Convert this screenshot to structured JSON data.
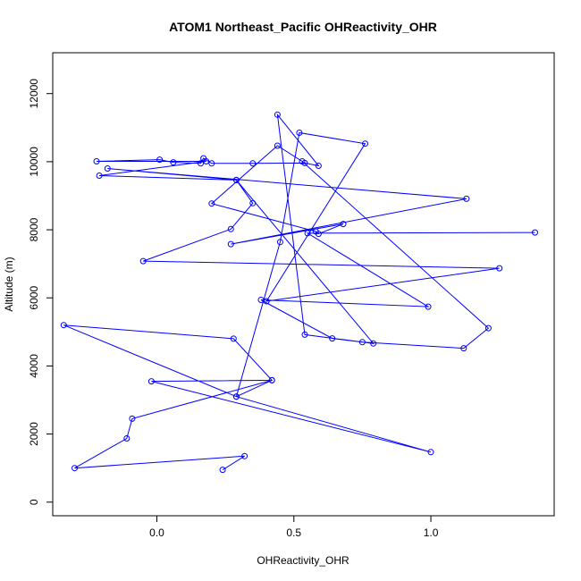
{
  "chart_data": {
    "type": "scatter",
    "title": "ATOM1 Northeast_Pacific OHReactivity_OHR",
    "xlabel": "OHReactivity_OHR",
    "ylabel": "Altitude (m)",
    "xlim": [
      -0.38,
      1.45
    ],
    "ylim": [
      -400,
      13200
    ],
    "x_ticks": [
      0.0,
      0.5,
      1.0
    ],
    "x_tick_labels": [
      "0.0",
      "0.5",
      "1.0"
    ],
    "y_ticks": [
      0,
      2000,
      4000,
      6000,
      8000,
      10000,
      12000
    ],
    "y_tick_labels": [
      "0",
      "2000",
      "4000",
      "6000",
      "8000",
      "10000",
      "12000"
    ],
    "grid": false,
    "series": [
      {
        "name": "OHReactivity_OHR",
        "color": "#0000ff",
        "x": [
          0.24,
          0.32,
          -0.3,
          -0.11,
          -0.09,
          0.42,
          0.29,
          -0.34,
          0.28,
          0.42,
          -0.02,
          1.0,
          0.29,
          0.45,
          0.52,
          0.76,
          0.4,
          1.25,
          -0.05,
          0.27,
          0.35,
          0.29,
          -0.21,
          0.18,
          -0.22,
          0.01,
          0.06,
          0.16,
          0.17,
          0.2,
          0.35,
          0.54,
          0.59,
          0.44,
          0.54,
          0.79,
          0.29,
          -0.18,
          1.13,
          0.27,
          0.68,
          0.59,
          0.58,
          0.2,
          0.44,
          0.53,
          1.21,
          1.12,
          0.75,
          0.64,
          0.38,
          0.99,
          0.55,
          1.38
        ],
        "y": [
          950,
          1350,
          1000,
          1870,
          2450,
          3580,
          3100,
          5200,
          4800,
          3580,
          3550,
          1470,
          3100,
          7640,
          10850,
          10530,
          5900,
          6870,
          7080,
          8020,
          8780,
          9460,
          9590,
          10010,
          10010,
          10060,
          9980,
          9950,
          10100,
          9950,
          9950,
          9960,
          9880,
          11380,
          4920,
          4660,
          9460,
          9800,
          8910,
          7580,
          8170,
          7880,
          7950,
          8770,
          10470,
          10010,
          5110,
          4520,
          4700,
          4810,
          5940,
          5740,
          7900,
          7920
        ]
      }
    ]
  }
}
